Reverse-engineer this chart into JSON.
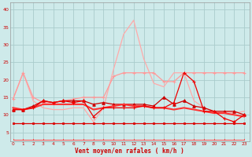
{
  "background_color": "#ceeaea",
  "grid_color": "#aacccc",
  "x_hours": [
    0,
    1,
    2,
    3,
    4,
    5,
    6,
    7,
    8,
    9,
    10,
    11,
    12,
    13,
    14,
    15,
    16,
    17,
    18,
    19,
    20,
    21,
    22,
    23
  ],
  "xlabel": "Vent moyen/en rafales ( km/h )",
  "ylabel_ticks": [
    5,
    10,
    15,
    20,
    25,
    30,
    35,
    40
  ],
  "ylim": [
    2.5,
    42
  ],
  "xlim": [
    -0.3,
    23.5
  ],
  "line_light_pink_plus": {
    "y": [
      14.5,
      22,
      15,
      13.5,
      13.5,
      14,
      14.5,
      15,
      15,
      15,
      21,
      22,
      22,
      22,
      22,
      19.5,
      19.5,
      22,
      22,
      22,
      22,
      22,
      22,
      22
    ],
    "color": "#ff9999",
    "lw": 0.9,
    "marker": "+"
  },
  "line_pink_peak": {
    "y": [
      14.5,
      22,
      14,
      12,
      11.5,
      11.5,
      12,
      12,
      8,
      12,
      23,
      33,
      37,
      26,
      19,
      18,
      22,
      22,
      14,
      12,
      11,
      11,
      10.5,
      11
    ],
    "color": "#ffaaaa",
    "lw": 0.9,
    "marker": null
  },
  "line_medium_red_triangle": {
    "y": [
      11.5,
      11.5,
      12.5,
      14,
      13.5,
      14,
      14,
      14,
      13,
      13.5,
      13,
      13,
      13,
      13,
      12.5,
      15,
      13,
      14,
      12.5,
      12,
      11,
      11,
      11,
      10
    ],
    "color": "#cc0000",
    "lw": 0.9,
    "marker": "^"
  },
  "line_red_cross_busy": {
    "y": [
      11.5,
      11.5,
      12,
      14,
      13.5,
      14,
      13.5,
      14,
      9.5,
      12,
      12,
      12,
      12,
      12.5,
      12,
      12,
      13.5,
      22,
      19.5,
      11,
      11,
      9,
      8,
      10
    ],
    "color": "#ee0000",
    "lw": 0.9,
    "marker": "+"
  },
  "line_red_flat_square": {
    "y": [
      7.5,
      7.5,
      7.5,
      7.5,
      7.5,
      7.5,
      7.5,
      7.5,
      7.5,
      7.5,
      7.5,
      7.5,
      7.5,
      7.5,
      7.5,
      7.5,
      7.5,
      7.5,
      7.5,
      7.5,
      7.5,
      7.5,
      7.5,
      7.5
    ],
    "color": "#dd0000",
    "lw": 0.9,
    "marker": "s"
  },
  "line_red_declining": {
    "y": [
      12,
      11.5,
      12,
      13,
      13,
      13,
      13,
      13,
      11.5,
      12,
      12.5,
      13,
      12.5,
      12.5,
      12,
      12,
      11.5,
      12,
      11.5,
      11,
      10.5,
      10.5,
      10,
      9.5
    ],
    "color": "#ff3333",
    "lw": 1.5,
    "marker": null
  },
  "line_thin_zigzag_bottom": {
    "y": [
      3,
      3,
      3,
      3,
      3,
      3,
      3,
      3,
      3,
      3,
      3,
      3,
      3,
      3,
      3,
      3,
      3,
      3,
      3,
      3,
      3,
      3,
      3,
      3
    ],
    "color": "#ff6666",
    "lw": 0.6,
    "marker": null
  },
  "line_very_bottom_dots": {
    "y": [
      2.8,
      2.8,
      2.8,
      2.8,
      2.8,
      2.8,
      2.8,
      2.8,
      2.8,
      2.8,
      2.8,
      2.8,
      2.8,
      2.8,
      2.8,
      2.8,
      2.8,
      2.8,
      2.8,
      2.8,
      2.8,
      2.8,
      2.8,
      2.8
    ],
    "color": "#ff4444",
    "lw": 0.5,
    "marker": ","
  }
}
